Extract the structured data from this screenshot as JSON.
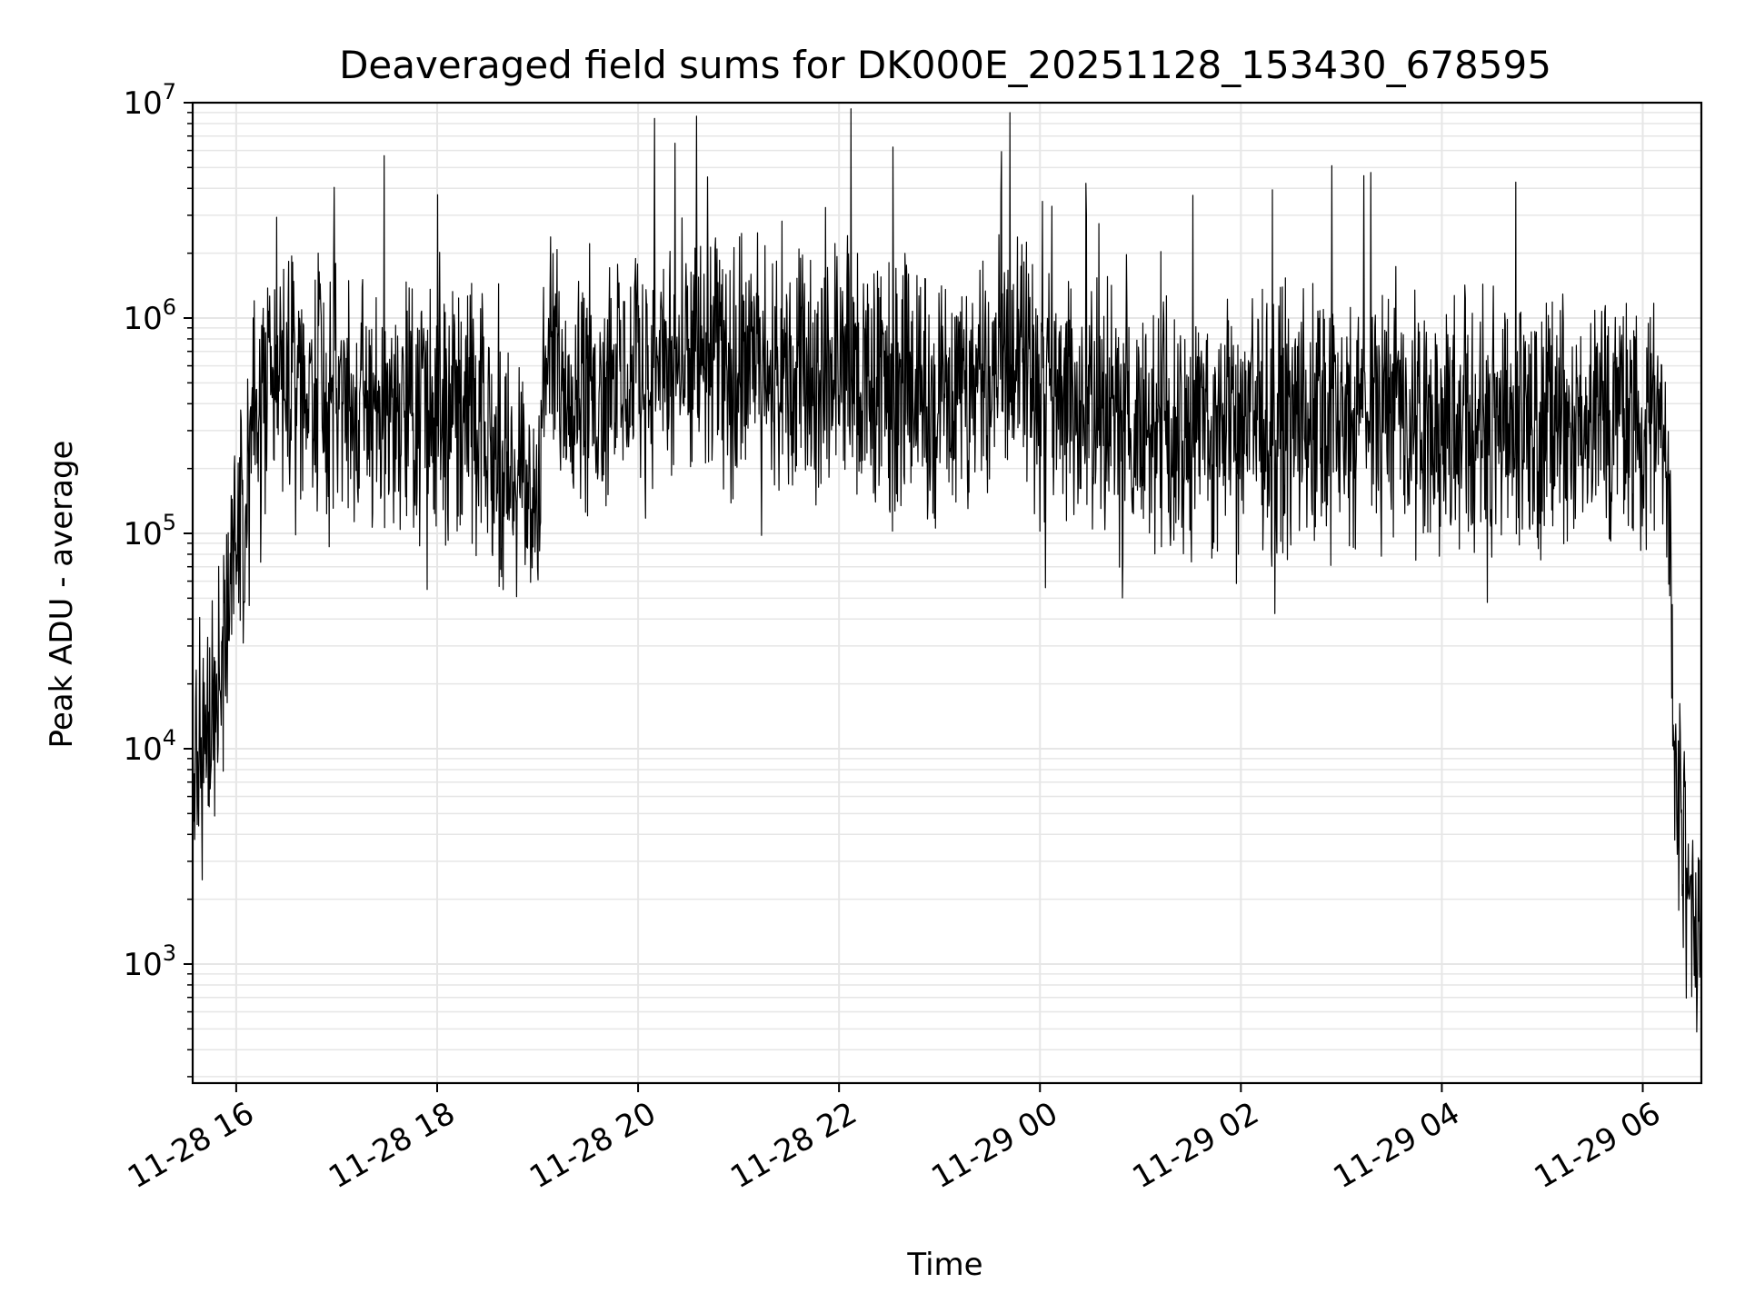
{
  "chart_data": {
    "type": "line",
    "title": "Deaveraged field sums for DK000E_20251128_153430_678595",
    "xlabel": "Time",
    "ylabel": "Peak ADU - average",
    "yscale": "log",
    "ylim": [
      280,
      10000000
    ],
    "xlim": [
      "2025-11-28 15:34",
      "2025-11-29 06:35"
    ],
    "grid": true,
    "line_color": "#000000",
    "grid_color": "#e6e6e6",
    "x_ticks": [
      {
        "label": "11-28 16",
        "value": "2025-11-28 16:00"
      },
      {
        "label": "11-28 18",
        "value": "2025-11-28 18:00"
      },
      {
        "label": "11-28 20",
        "value": "2025-11-28 20:00"
      },
      {
        "label": "11-28 22",
        "value": "2025-11-28 22:00"
      },
      {
        "label": "11-29 00",
        "value": "2025-11-29 00:00"
      },
      {
        "label": "11-29 02",
        "value": "2025-11-29 02:00"
      },
      {
        "label": "11-29 04",
        "value": "2025-11-29 04:00"
      },
      {
        "label": "11-29 06",
        "value": "2025-11-29 06:00"
      }
    ],
    "y_ticks": [
      {
        "base": "10",
        "exp": "3",
        "value": 1000
      },
      {
        "base": "10",
        "exp": "4",
        "value": 10000
      },
      {
        "base": "10",
        "exp": "5",
        "value": 100000
      },
      {
        "base": "10",
        "exp": "6",
        "value": 1000000
      },
      {
        "base": "10",
        "exp": "7",
        "value": 10000000
      }
    ],
    "series": [
      {
        "x": [
          "2025-11-28 15:34",
          "2025-11-28 15:40",
          "2025-11-28 15:45",
          "2025-11-28 15:50",
          "2025-11-28 15:55",
          "2025-11-28 16:00",
          "2025-11-28 16:05",
          "2025-11-28 16:10",
          "2025-11-28 16:15",
          "2025-11-28 16:20",
          "2025-11-28 16:30",
          "2025-11-28 16:45",
          "2025-11-28 17:00",
          "2025-11-28 17:30",
          "2025-11-28 18:00",
          "2025-11-28 18:20",
          "2025-11-28 18:30",
          "2025-11-28 18:45",
          "2025-11-28 19:00",
          "2025-11-28 19:05",
          "2025-11-28 19:30",
          "2025-11-28 20:00",
          "2025-11-28 20:30",
          "2025-11-28 21:00",
          "2025-11-28 21:30",
          "2025-11-28 22:00",
          "2025-11-28 22:30",
          "2025-11-28 23:00",
          "2025-11-28 23:30",
          "2025-11-28 23:50",
          "2025-11-29 00:00",
          "2025-11-29 00:30",
          "2025-11-29 01:00",
          "2025-11-29 01:30",
          "2025-11-29 02:00",
          "2025-11-29 02:30",
          "2025-11-29 03:00",
          "2025-11-29 03:30",
          "2025-11-29 04:00",
          "2025-11-29 04:30",
          "2025-11-29 05:00",
          "2025-11-29 05:30",
          "2025-11-29 06:00",
          "2025-11-29 06:10",
          "2025-11-29 06:15",
          "2025-11-29 06:20",
          "2025-11-29 06:25",
          "2025-11-29 06:30",
          "2025-11-29 06:35"
        ],
        "y": [
          6000,
          8000,
          15000,
          25000,
          50000,
          100000,
          150000,
          300000,
          400000,
          450000,
          500000,
          450000,
          400000,
          380000,
          420000,
          350000,
          250000,
          180000,
          150000,
          600000,
          500000,
          550000,
          600000,
          650000,
          600000,
          550000,
          500000,
          450000,
          500000,
          1000000,
          450000,
          380000,
          320000,
          300000,
          350000,
          320000,
          330000,
          340000,
          300000,
          310000,
          320000,
          330000,
          350000,
          300000,
          150000,
          8000,
          3000,
          1500,
          1200
        ]
      }
    ]
  }
}
